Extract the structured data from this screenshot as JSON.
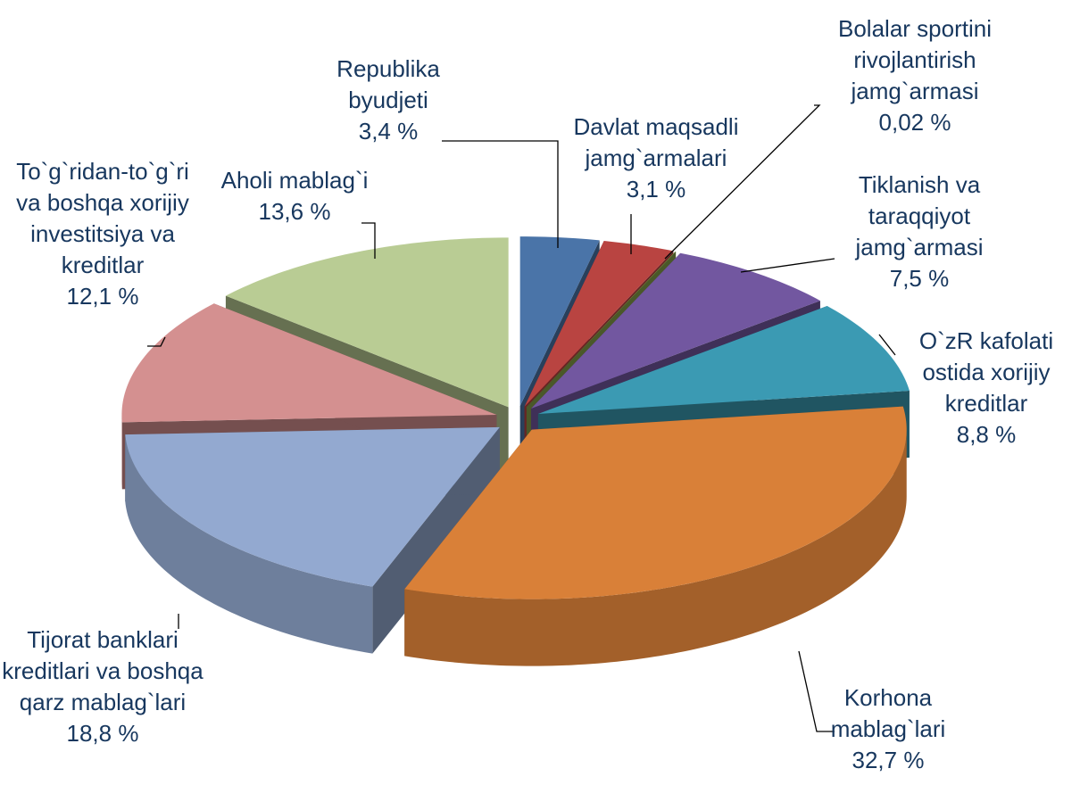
{
  "chart_data": {
    "type": "pie",
    "categories": [
      "Republika byudjeti",
      "Davlat maqsadli jamg`armalari",
      "Bolalar sportini rivojlantirish jamg`armasi",
      "Tiklanish va taraqqiyot jamg`armasi",
      "O`zR kafolati ostida xorijiy kreditlar",
      "Korhona mablag`lari",
      "Tijorat banklari kreditlari va boshqa qarz mablag`lari",
      "To`g`ridan-to`g`ri va boshqa xorijiy investitsiya va kreditlar",
      "Aholi mablag`i"
    ],
    "values": [
      3.4,
      3.1,
      0.02,
      7.5,
      8.8,
      32.7,
      18.8,
      12.1,
      13.6
    ],
    "value_labels": [
      "3,4 %",
      "3,1 %",
      "0,02 %",
      "7,5 %",
      "8,8 %",
      "32,7 %",
      "18,8 %",
      "12,1 %",
      "13,6 %"
    ],
    "colors": [
      "#4a74a8",
      "#b94441",
      "#86a04a",
      "#7257a0",
      "#3b9ab3",
      "#d98038",
      "#93a9d0",
      "#d49090",
      "#b9cc94"
    ]
  }
}
